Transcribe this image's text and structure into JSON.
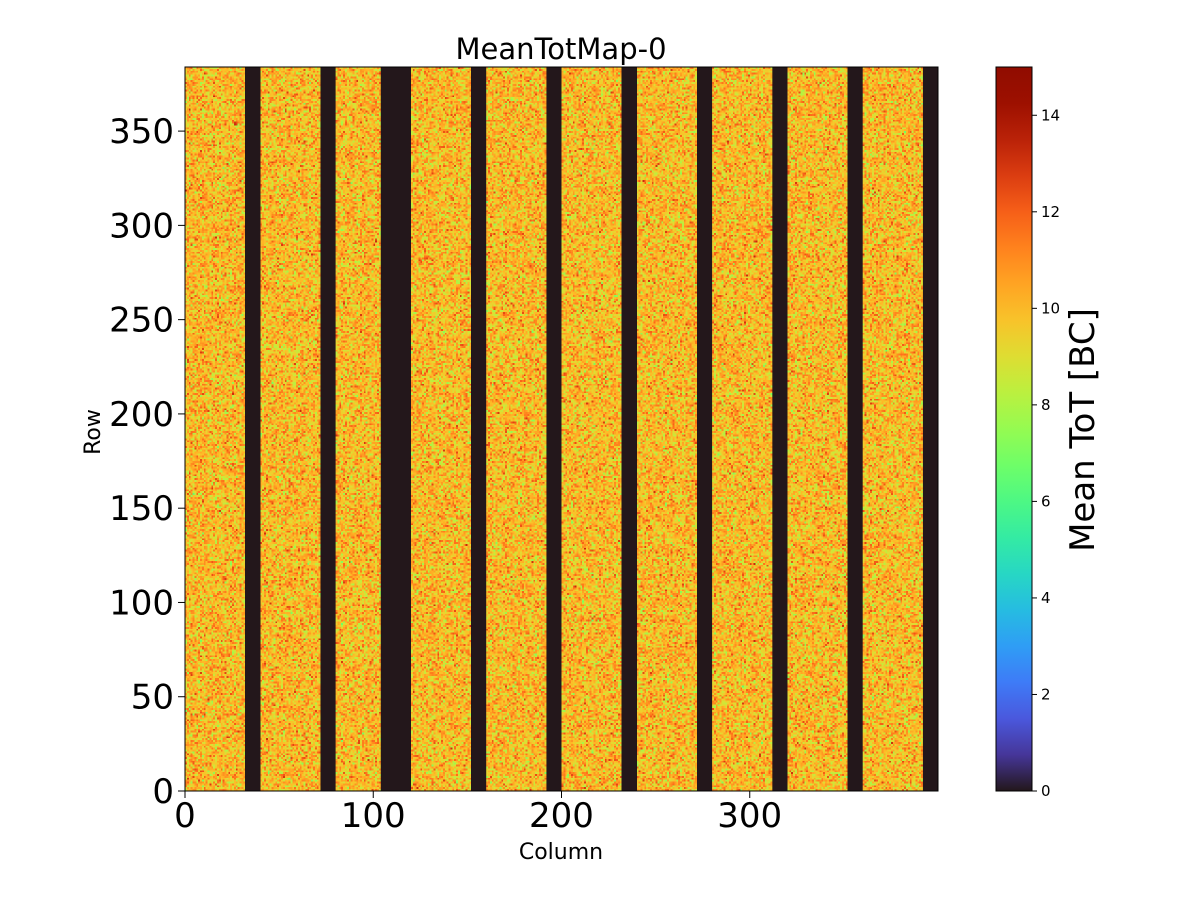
{
  "chart_data": {
    "type": "heatmap",
    "title": "MeanTotMap-0",
    "xlabel": "Column",
    "ylabel": "Row",
    "xlim": [
      0,
      400
    ],
    "ylim": [
      0,
      384
    ],
    "x_ticks": [
      0,
      100,
      200,
      300
    ],
    "y_ticks": [
      0,
      50,
      100,
      150,
      200,
      250,
      300,
      350
    ],
    "grid": false,
    "colorbar": {
      "label": "Mean ToT [BC]",
      "range": [
        0,
        15
      ],
      "ticks": [
        0,
        2,
        4,
        6,
        8,
        10,
        12,
        14
      ],
      "colormap": "turbo"
    },
    "typical_value_range": [
      7,
      13
    ],
    "zero_columns": [
      [
        32,
        40
      ],
      [
        72,
        80
      ],
      [
        104,
        120
      ],
      [
        152,
        160
      ],
      [
        192,
        200
      ],
      [
        232,
        240
      ],
      [
        272,
        280
      ],
      [
        312,
        320
      ],
      [
        352,
        360
      ],
      [
        392,
        400
      ]
    ],
    "zero_value": 0
  }
}
